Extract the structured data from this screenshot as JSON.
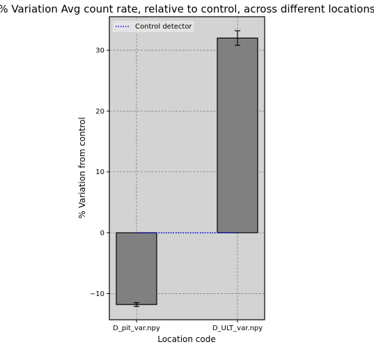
{
  "chart_data": {
    "type": "bar",
    "title": "% Variation Avg count rate, relative to control, across different locations",
    "xlabel": "Location code",
    "ylabel": "% Variation from control",
    "categories": [
      "D_pit_var.npy",
      "D_ULT_var.npy"
    ],
    "values": [
      -11.8,
      32.0
    ],
    "errors": [
      0.3,
      1.2
    ],
    "ylim": [
      -14.3,
      35.5
    ],
    "yticks": [
      -10,
      0,
      10,
      20,
      30
    ],
    "grid": true,
    "legend": {
      "position": "top-left",
      "entries": [
        "Control detector"
      ]
    },
    "reference_line": {
      "name": "Control detector",
      "value": 0,
      "style": "dotted"
    },
    "colors": {
      "background": "#d3d3d3",
      "bar_fill": "#808080",
      "bar_edge": "#000000",
      "grid": "#808080",
      "control_line": "#0000ff"
    }
  }
}
